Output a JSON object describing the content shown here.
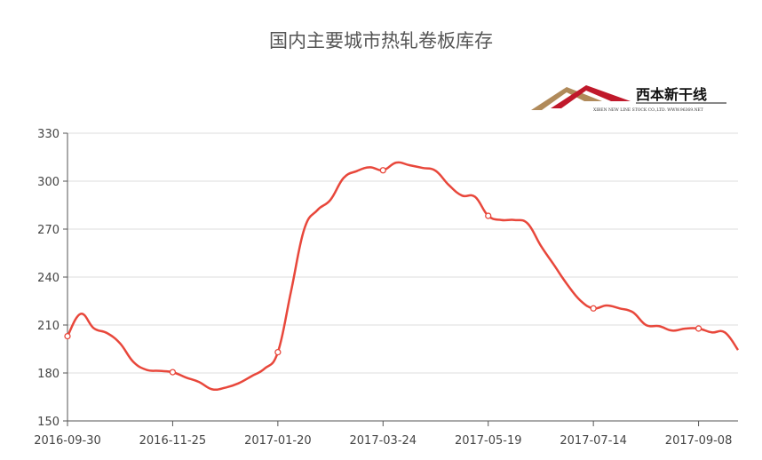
{
  "chart_data": {
    "type": "line",
    "title": "国内主要城市热轧卷板库存",
    "xlabel": "",
    "ylabel": "",
    "ylim": [
      150,
      330
    ],
    "yticks": [
      150,
      180,
      210,
      240,
      270,
      300,
      330
    ],
    "grid": true,
    "smooth": true,
    "line_color": "#e8473b",
    "x": [
      "2016-09-30",
      "2016-10-07",
      "2016-10-14",
      "2016-10-21",
      "2016-10-28",
      "2016-11-04",
      "2016-11-11",
      "2016-11-18",
      "2016-11-25",
      "2016-12-02",
      "2016-12-09",
      "2016-12-16",
      "2016-12-23",
      "2016-12-30",
      "2017-01-06",
      "2017-01-13",
      "2017-01-20",
      "2017-01-27",
      "2017-02-10",
      "2017-02-17",
      "2017-02-24",
      "2017-03-03",
      "2017-03-10",
      "2017-03-17",
      "2017-03-24",
      "2017-03-31",
      "2017-04-07",
      "2017-04-14",
      "2017-04-21",
      "2017-04-28",
      "2017-05-05",
      "2017-05-12",
      "2017-05-19",
      "2017-05-26",
      "2017-06-02",
      "2017-06-09",
      "2017-06-16",
      "2017-06-23",
      "2017-06-30",
      "2017-07-07",
      "2017-07-14",
      "2017-07-21",
      "2017-07-28",
      "2017-08-04",
      "2017-08-11",
      "2017-08-18",
      "2017-08-25",
      "2017-09-01",
      "2017-09-08",
      "2017-09-15",
      "2017-09-22",
      "2017-09-29"
    ],
    "xtick_labels": [
      "2016-09-30",
      "2016-11-25",
      "2017-01-20",
      "2017-03-24",
      "2017-05-19",
      "2017-07-14",
      "2017-09-08"
    ],
    "values": [
      203,
      217,
      208,
      205,
      198.5,
      187,
      182,
      181.3,
      180.5,
      177.2,
      174.4,
      169.8,
      170.8,
      173.5,
      178,
      182.8,
      193,
      231,
      269.8,
      281.8,
      288.3,
      302,
      306.3,
      308.7,
      306.8,
      311.6,
      310,
      308.3,
      306.5,
      297.6,
      291,
      290.2,
      278.3,
      275.7,
      275.7,
      273.5,
      259.6,
      247.6,
      235.5,
      225.4,
      220.4,
      222.2,
      220.4,
      218,
      210,
      209.3,
      206.5,
      207.8,
      207.8,
      205.4,
      205.4,
      194.4
    ]
  },
  "logo": {
    "name": "西本新干线",
    "subtitle": "XIBEN NEW LINE STOCK CO.,LTD.   WWW.96369.NET"
  }
}
